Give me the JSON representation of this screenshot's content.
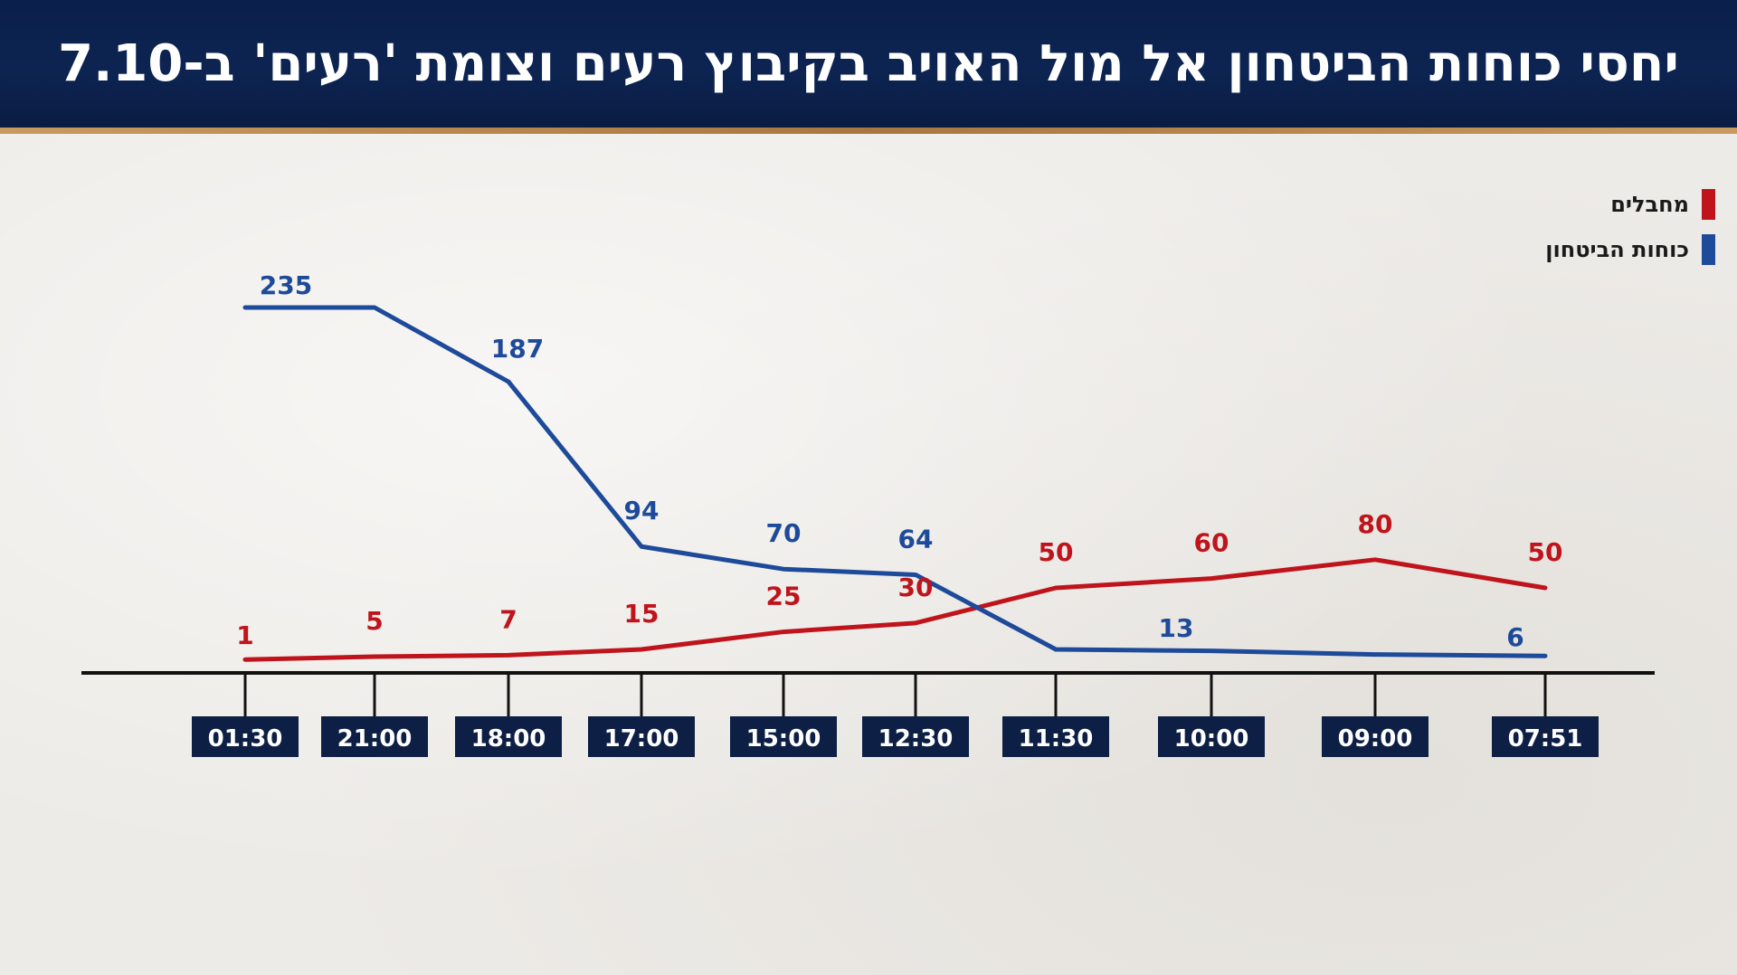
{
  "title": "יחסי כוחות הביטחון אל מול האויב בקיבוץ רעים וצומת 'רעים' ב-7.10",
  "colors": {
    "terrorists": "#c0141c",
    "security_forces": "#1e4a9a",
    "time_box": "#0d1f44",
    "axis": "#111111"
  },
  "legend": [
    {
      "label": "מחבלים",
      "color": "#c0141c"
    },
    {
      "label": "כוחות הביטחון",
      "color": "#1e4a9a"
    }
  ],
  "chart_data": {
    "type": "line",
    "title": "יחסי כוחות הביטחון אל מול האויב בקיבוץ רעים וצומת 'רעים' ב-7.10",
    "x_direction": "right-to-left",
    "categories": [
      "07:51",
      "09:00",
      "10:00",
      "11:30",
      "12:30",
      "15:00",
      "17:00",
      "18:00",
      "21:00",
      "01:30"
    ],
    "series": [
      {
        "name": "מחבלים",
        "color": "#c0141c",
        "points": [
          {
            "x": "07:51",
            "y": 50,
            "label": "50"
          },
          {
            "x": "09:00",
            "y": 80,
            "label": "80"
          },
          {
            "x": "10:00",
            "y": 60,
            "label": "60"
          },
          {
            "x": "11:30",
            "y": 50,
            "label": "50"
          },
          {
            "x": "12:30",
            "y": 30,
            "label": "30"
          },
          {
            "x": "15:00",
            "y": 25,
            "label": "25"
          },
          {
            "x": "17:00",
            "y": 15,
            "label": "15"
          },
          {
            "x": "18:00",
            "y": 7,
            "label": "7"
          },
          {
            "x": "21:00",
            "y": 5,
            "label": "5"
          },
          {
            "x": "01:30",
            "y": 1,
            "label": "1"
          }
        ]
      },
      {
        "name": "כוחות הביטחון",
        "color": "#1e4a9a",
        "points": [
          {
            "x": "07:51",
            "y": 6,
            "label": "6"
          },
          {
            "x": "09:00",
            "y": 8,
            "label": ""
          },
          {
            "x": "10:00",
            "y": 13,
            "label": "13"
          },
          {
            "x": "11:30",
            "y": 15,
            "label": ""
          },
          {
            "x": "12:30",
            "y": 64,
            "label": "64"
          },
          {
            "x": "15:00",
            "y": 70,
            "label": "70"
          },
          {
            "x": "17:00",
            "y": 94,
            "label": "94"
          },
          {
            "x": "18:00",
            "y": 187,
            "label": "187"
          },
          {
            "x": "21:00",
            "y": 235,
            "label": ""
          },
          {
            "x": "01:30",
            "y": 235,
            "label": "235"
          }
        ]
      }
    ],
    "xlabel": "",
    "ylabel": "",
    "grid": false,
    "legend_position": "top-right"
  }
}
